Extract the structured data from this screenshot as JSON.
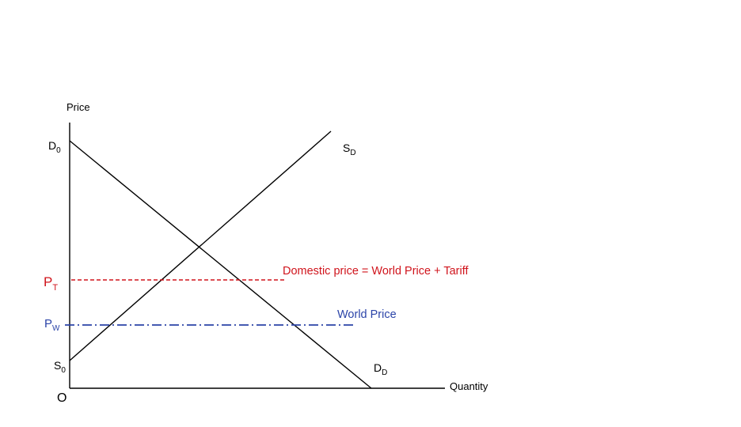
{
  "colors": {
    "axis": "#000000",
    "curve": "#000000",
    "tariff_price": "#d0141c",
    "world_price": "#2b44a8"
  },
  "axes": {
    "y_label": "Price",
    "x_label": "Quantity",
    "origin_label": "O"
  },
  "demand": {
    "intercept_main": "D",
    "intercept_sub": "0",
    "curve_main": "D",
    "curve_sub": "D"
  },
  "supply": {
    "intercept_main": "S",
    "intercept_sub": "0",
    "curve_main": "S",
    "curve_sub": "D"
  },
  "tariff_price": {
    "label_main": "P",
    "label_sub": "T",
    "caption": "Domestic price = World Price + Tariff",
    "line_style": "dashed"
  },
  "world_price": {
    "label_main": "P",
    "label_sub": "W",
    "caption": "World Price",
    "line_style": "dash-dot"
  }
}
